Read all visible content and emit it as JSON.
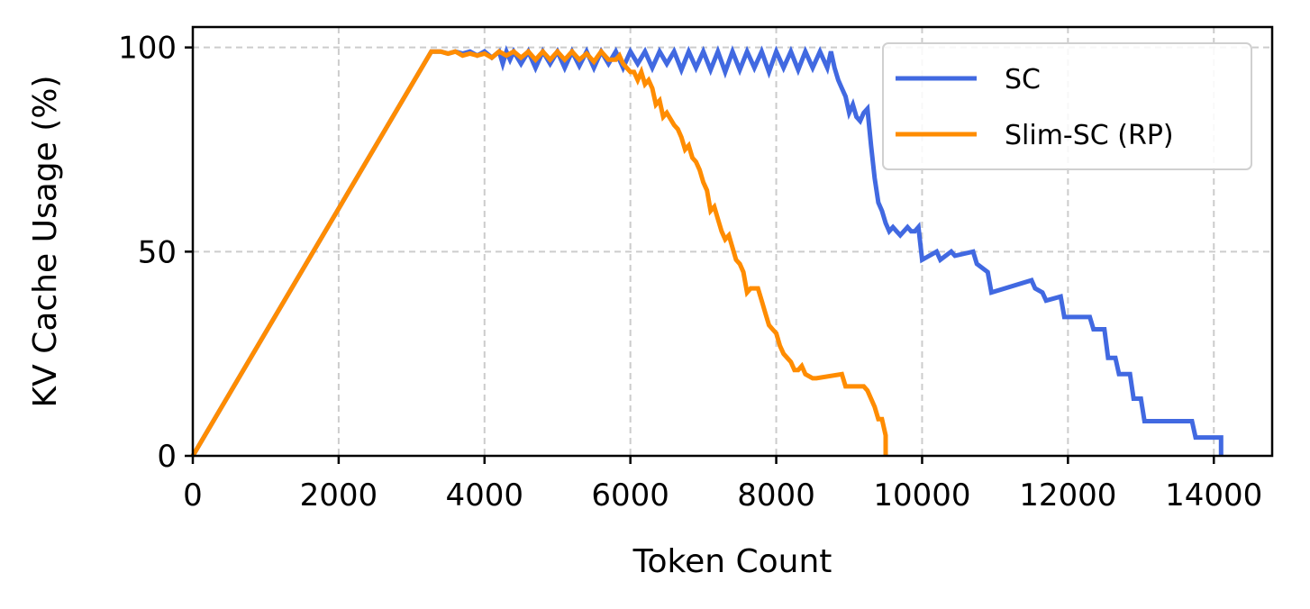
{
  "chart_data": {
    "type": "line",
    "title": "",
    "xlabel": "Token Count",
    "ylabel": "KV Cache Usage (%)",
    "xlim": [
      0,
      14800
    ],
    "ylim": [
      0,
      105
    ],
    "xticks": [
      "0",
      "2000",
      "4000",
      "6000",
      "8000",
      "10000",
      "12000",
      "14000"
    ],
    "xtick_values": [
      0,
      2000,
      4000,
      6000,
      8000,
      10000,
      12000,
      14000
    ],
    "yticks": [
      "0",
      "50",
      "100"
    ],
    "ytick_values": [
      0,
      50,
      100
    ],
    "grid": true,
    "legend_position": "top-right",
    "series": [
      {
        "name": "SC",
        "color": "#4169E1",
        "x": [
          0,
          3270,
          3400,
          3500,
          3600,
          3700,
          3800,
          3900,
          4000,
          4100,
          4200,
          4250,
          4300,
          4350,
          4400,
          4500,
          4600,
          4700,
          4800,
          4900,
          5000,
          5100,
          5200,
          5300,
          5400,
          5500,
          5600,
          5700,
          5800,
          5900,
          6000,
          6100,
          6200,
          6300,
          6400,
          6500,
          6600,
          6700,
          6800,
          6900,
          7000,
          7100,
          7200,
          7300,
          7400,
          7500,
          7600,
          7700,
          7800,
          7900,
          8000,
          8100,
          8200,
          8300,
          8400,
          8500,
          8600,
          8700,
          8750,
          8800,
          8850,
          8900,
          8950,
          9000,
          9050,
          9100,
          9150,
          9200,
          9250,
          9300,
          9350,
          9400,
          9450,
          9500,
          9550,
          9600,
          9650,
          9700,
          9750,
          9800,
          9850,
          9900,
          9950,
          10000,
          10200,
          10250,
          10400,
          10450,
          10700,
          10750,
          10900,
          10950,
          11500,
          11550,
          11650,
          11700,
          11900,
          11950,
          12300,
          12350,
          12500,
          12550,
          12650,
          12700,
          12850,
          12900,
          13000,
          13050,
          13700,
          13750,
          14100,
          14100
        ],
        "y": [
          0,
          99,
          99,
          98.5,
          99,
          98.5,
          99,
          98,
          99,
          97.5,
          99,
          96,
          99,
          97,
          99,
          96,
          99,
          95,
          99,
          96,
          99,
          95,
          99,
          95.5,
          99,
          95,
          99,
          96,
          99,
          95,
          99,
          96,
          99,
          95,
          99,
          96,
          99,
          94.5,
          99,
          95,
          99,
          94.5,
          99,
          94,
          99,
          94.5,
          99,
          95,
          99,
          94,
          99,
          95,
          99,
          94.5,
          99,
          95,
          99,
          95,
          99,
          95,
          92,
          90,
          88,
          84,
          86,
          83,
          82,
          84,
          85,
          76,
          68,
          62,
          60,
          57,
          55,
          56,
          55,
          54,
          55,
          56,
          55,
          55,
          56,
          48,
          50,
          48,
          50,
          49,
          50,
          47,
          45,
          40,
          43,
          41,
          40,
          38,
          39,
          34,
          34,
          31,
          31,
          24,
          24,
          20,
          20,
          14,
          14,
          8.5,
          8.5,
          4.5,
          4.5,
          0
        ]
      },
      {
        "name": "Slim-SC (RP)",
        "color": "#FF8C00",
        "x": [
          0,
          3270,
          3400,
          3500,
          3600,
          3700,
          3800,
          3900,
          4000,
          4100,
          4200,
          4300,
          4400,
          4500,
          4600,
          4700,
          4800,
          4900,
          5000,
          5100,
          5200,
          5300,
          5400,
          5500,
          5600,
          5700,
          5800,
          5850,
          5900,
          5950,
          6000,
          6050,
          6100,
          6150,
          6200,
          6250,
          6300,
          6350,
          6400,
          6450,
          6500,
          6600,
          6650,
          6700,
          6750,
          6800,
          6850,
          6900,
          6950,
          7000,
          7050,
          7100,
          7150,
          7200,
          7250,
          7300,
          7350,
          7400,
          7450,
          7500,
          7550,
          7600,
          7650,
          7750,
          7800,
          7850,
          7900,
          7950,
          8000,
          8050,
          8100,
          8150,
          8200,
          8250,
          8300,
          8350,
          8400,
          8500,
          8550,
          8900,
          8950,
          9200,
          9250,
          9350,
          9400,
          9450,
          9500,
          9500
        ],
        "y": [
          0,
          99,
          99,
          98.5,
          99,
          98,
          98.5,
          98,
          98.5,
          97.5,
          99,
          98,
          99,
          97.5,
          99,
          97,
          99,
          97,
          99,
          97,
          99,
          97,
          98.5,
          96.5,
          99,
          97,
          97,
          98,
          96,
          95,
          94,
          94,
          92,
          94,
          91,
          92,
          90,
          86,
          87,
          83,
          84,
          81,
          80,
          78,
          75,
          76,
          73,
          72,
          70,
          67,
          65,
          60,
          61,
          58,
          55,
          53,
          54,
          51,
          48,
          47,
          45,
          40,
          41,
          41,
          38,
          35,
          32,
          31,
          30,
          27,
          25,
          24,
          23,
          21,
          21,
          22,
          20,
          19,
          19,
          20,
          17,
          17,
          16,
          12,
          9,
          9,
          5,
          0
        ]
      }
    ]
  }
}
